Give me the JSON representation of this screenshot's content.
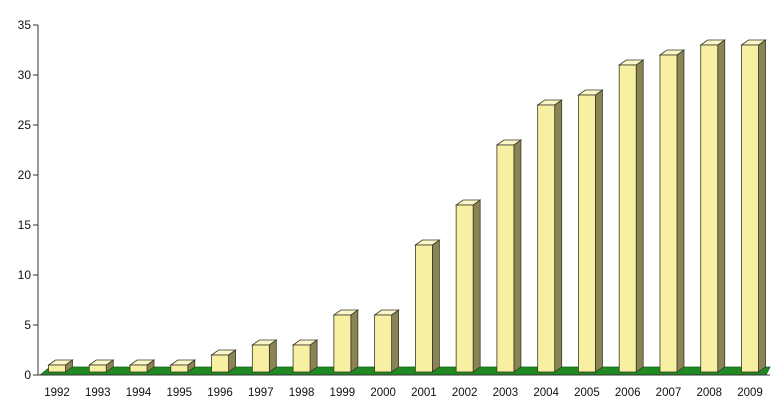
{
  "chart_data": {
    "type": "bar",
    "title": "",
    "xlabel": "",
    "ylabel": "",
    "categories": [
      "1992",
      "1993",
      "1994",
      "1995",
      "1996",
      "1997",
      "1998",
      "1999",
      "2000",
      "2001",
      "2002",
      "2003",
      "2004",
      "2005",
      "2006",
      "2007",
      "2008",
      "2009"
    ],
    "values": [
      1,
      1,
      1,
      1,
      2,
      3,
      3,
      6,
      6,
      13,
      17,
      23,
      27,
      28,
      31,
      32,
      33,
      33
    ],
    "ylim": [
      0,
      35
    ],
    "yticks": [
      "0",
      "5",
      "10",
      "15",
      "20",
      "25",
      "30",
      "35"
    ],
    "grid": false,
    "legend": "none",
    "colors": {
      "bar_face": "#f7efa1",
      "bar_side": "#8a8455",
      "bar_top": "#fbf6c8",
      "floor": "#1f8a22",
      "axis": "#333333"
    }
  }
}
